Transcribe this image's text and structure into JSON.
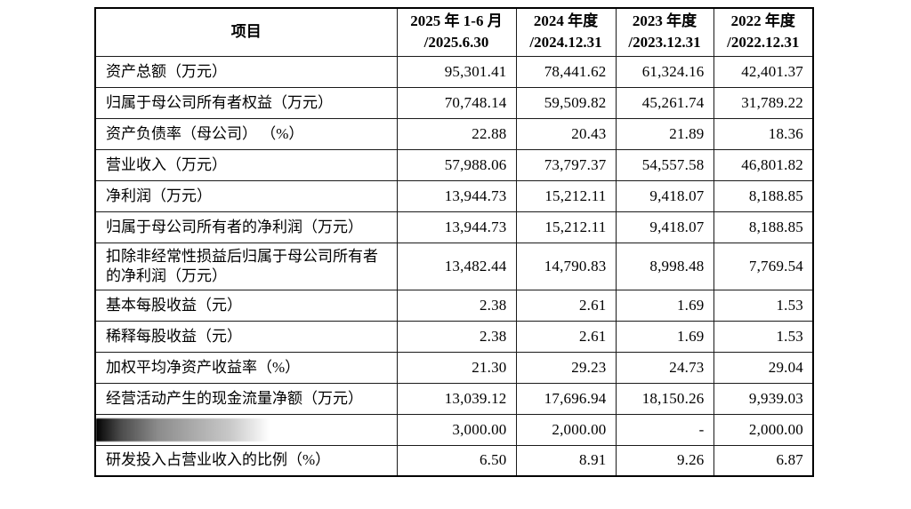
{
  "table": {
    "item_header": "项目",
    "columns": [
      {
        "line1": "2025 年 1-6 月",
        "line2": "/2025.6.30"
      },
      {
        "line1": "2024 年度",
        "line2": "/2024.12.31"
      },
      {
        "line1": "2023 年度",
        "line2": "/2023.12.31"
      },
      {
        "line1": "2022 年度",
        "line2": "/2022.12.31"
      }
    ],
    "rows": [
      {
        "label": "资产总额（万元）",
        "redacted": false,
        "values": [
          "95,301.41",
          "78,441.62",
          "61,324.16",
          "42,401.37"
        ]
      },
      {
        "label": "归属于母公司所有者权益（万元）",
        "redacted": false,
        "values": [
          "70,748.14",
          "59,509.82",
          "45,261.74",
          "31,789.22"
        ]
      },
      {
        "label": "资产负债率（母公司） （%）",
        "redacted": false,
        "values": [
          "22.88",
          "20.43",
          "21.89",
          "18.36"
        ]
      },
      {
        "label": "营业收入（万元）",
        "redacted": false,
        "values": [
          "57,988.06",
          "73,797.37",
          "54,557.58",
          "46,801.82"
        ]
      },
      {
        "label": "净利润（万元）",
        "redacted": false,
        "values": [
          "13,944.73",
          "15,212.11",
          "9,418.07",
          "8,188.85"
        ]
      },
      {
        "label": "归属于母公司所有者的净利润（万元）",
        "redacted": false,
        "values": [
          "13,944.73",
          "15,212.11",
          "9,418.07",
          "8,188.85"
        ]
      },
      {
        "label": "扣除非经常性损益后归属于母公司所有者的净利润（万元）",
        "redacted": false,
        "values": [
          "13,482.44",
          "14,790.83",
          "8,998.48",
          "7,769.54"
        ]
      },
      {
        "label": "基本每股收益（元）",
        "redacted": false,
        "values": [
          "2.38",
          "2.61",
          "1.69",
          "1.53"
        ]
      },
      {
        "label": "稀释每股收益（元）",
        "redacted": false,
        "values": [
          "2.38",
          "2.61",
          "1.69",
          "1.53"
        ]
      },
      {
        "label": "加权平均净资产收益率（%）",
        "redacted": false,
        "values": [
          "21.30",
          "29.23",
          "24.73",
          "29.04"
        ]
      },
      {
        "label": "经营活动产生的现金流量净额（万元）",
        "redacted": false,
        "values": [
          "13,039.12",
          "17,696.94",
          "18,150.26",
          "9,939.03"
        ]
      },
      {
        "label": "",
        "redacted": true,
        "values": [
          "3,000.00",
          "2,000.00",
          "-",
          "2,000.00"
        ]
      },
      {
        "label": "研发投入占营业收入的比例（%）",
        "redacted": false,
        "values": [
          "6.50",
          "8.91",
          "9.26",
          "6.87"
        ]
      }
    ]
  }
}
